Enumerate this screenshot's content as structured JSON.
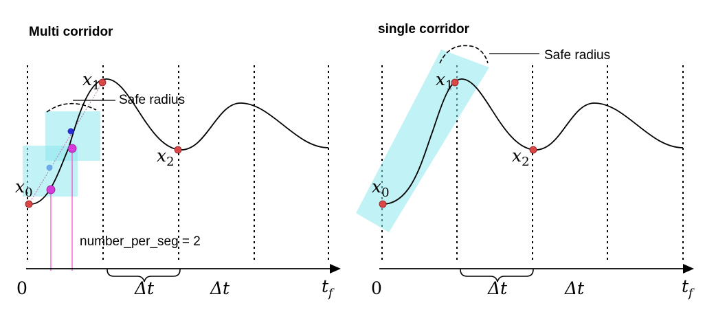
{
  "left": {
    "title": "Multi corridor",
    "safe_radius": "Safe radius",
    "number_label": "number_per_seg  = 2",
    "x1": "x",
    "x1_sub": "1",
    "x2": "x",
    "x2_sub": "2",
    "x0": "x",
    "x0_sub": "0",
    "axis_zero": "0",
    "axis_dt_brace": "Δt",
    "axis_dt": "Δt",
    "axis_tf": "t",
    "axis_tf_sub": "f"
  },
  "right": {
    "title": "single corridor",
    "safe_radius": "Safe radius",
    "x1": "x",
    "x1_sub": "1",
    "x2": "x",
    "x2_sub": "2",
    "x0": "x",
    "x0_sub": "0",
    "axis_zero": "0",
    "axis_dt_brace": "Δt",
    "axis_dt": "Δt",
    "axis_tf": "t",
    "axis_tf_sub": "f"
  },
  "colors": {
    "corridor": "#8ee8ee",
    "waypoint": "#d94646",
    "sample": "#d63ad8",
    "guide": "#ff44cc",
    "blue_dot": "#2a2fd4",
    "lightblue_dot": "#6ea8e8",
    "curve": "#000000"
  }
}
